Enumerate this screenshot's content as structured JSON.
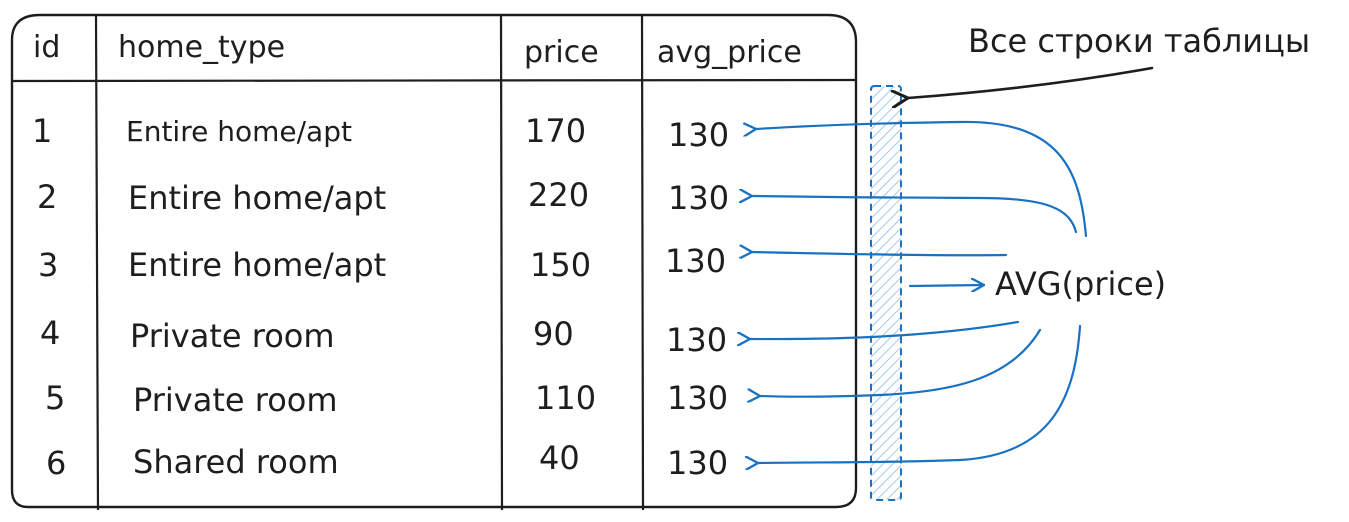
{
  "table": {
    "headers": [
      "id",
      "home_type",
      "price",
      "avg_price"
    ],
    "rows": [
      {
        "id": "1",
        "home_type": "Entire home/apt",
        "price": "170",
        "avg_price": "130"
      },
      {
        "id": "2",
        "home_type": "Entire home/apt",
        "price": "220",
        "avg_price": "130"
      },
      {
        "id": "3",
        "home_type": "Entire home/apt",
        "price": "150",
        "avg_price": "130"
      },
      {
        "id": "4",
        "home_type": "Private room",
        "price": "90",
        "avg_price": "130"
      },
      {
        "id": "5",
        "home_type": "Private room",
        "price": "110",
        "avg_price": "130"
      },
      {
        "id": "6",
        "home_type": "Shared room",
        "price": "40",
        "avg_price": "130"
      }
    ]
  },
  "annotations": {
    "all_rows_label": "Все строки таблицы",
    "function_label": "AVG(price)"
  },
  "colors": {
    "ink": "#1e1e1e",
    "arrow_blue": "#1971c2",
    "hatch_blue": "#4a90d9"
  }
}
